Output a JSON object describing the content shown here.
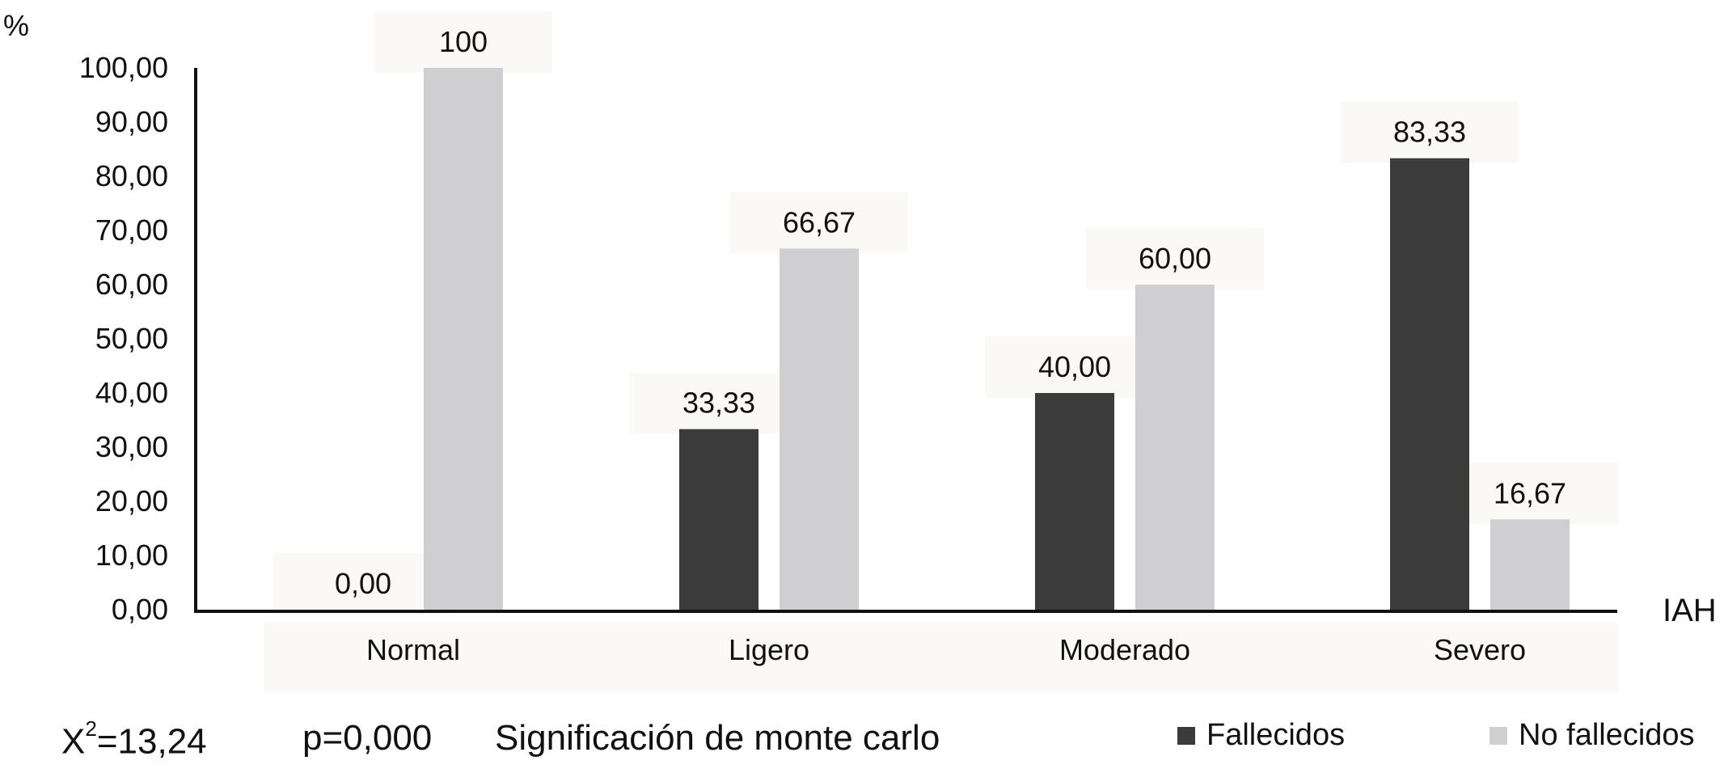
{
  "chart_data": {
    "type": "bar",
    "y_unit_label": "%",
    "x_axis_label": "IAH",
    "categories": [
      "Normal",
      "Ligero",
      "Moderado",
      "Severo"
    ],
    "series": [
      {
        "name": "Fallecidos",
        "color": "#3b3b3b",
        "values": [
          0,
          33.33,
          40,
          83.33
        ],
        "labels": [
          "0,00",
          "33,33",
          "40,00",
          "83,33"
        ]
      },
      {
        "name": "No fallecidos",
        "color": "#cfcfd1",
        "values": [
          100,
          66.67,
          60,
          16.67
        ],
        "labels": [
          "100",
          "66,67",
          "60,00",
          "16,67"
        ]
      }
    ],
    "yticks": [
      "0,00",
      "10,00",
      "20,00",
      "30,00",
      "40,00",
      "50,00",
      "60,00",
      "70,00",
      "80,00",
      "90,00",
      "100,00"
    ],
    "ylim": [
      0,
      100
    ],
    "grid": false,
    "legend_position": "bottom-right"
  },
  "stats": {
    "chi_base": "X",
    "chi_sup": "2",
    "chi_value": "=13,24",
    "p_value": "p=0,000",
    "method": "Significación de monte carlo"
  }
}
